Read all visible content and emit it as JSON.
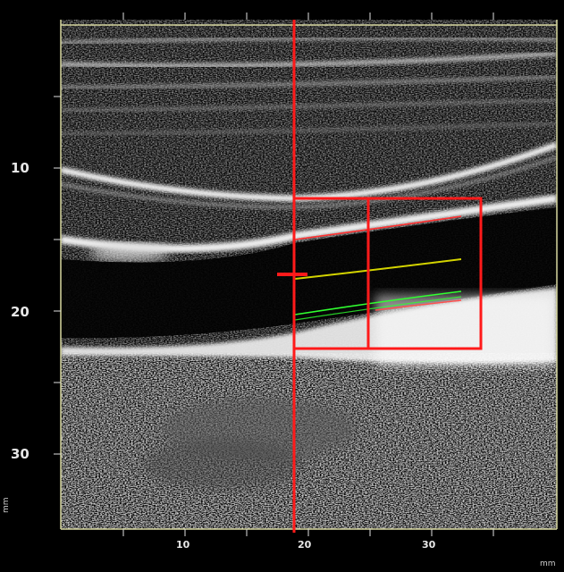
{
  "depth_axis": {
    "labels": [
      "10",
      "20",
      "30"
    ],
    "unit": "mm"
  },
  "width_axis": {
    "labels": [
      "10",
      "20",
      "30"
    ],
    "unit": "mm"
  },
  "colors": {
    "background": "#000000",
    "frame_line": "#d8d8a0",
    "cursor_red": "#ff1a1a",
    "lumen_intima_trace": "#ff3030",
    "centerline_trace": "#d4d400",
    "far_wall_trace": "#30ff30",
    "adventitia_trace": "#ff5050"
  },
  "icons": {
    "vertical_cursor": "red-vertical-line",
    "roi_box": "red-rectangle",
    "cursor_marker": "red-tick-marker"
  }
}
